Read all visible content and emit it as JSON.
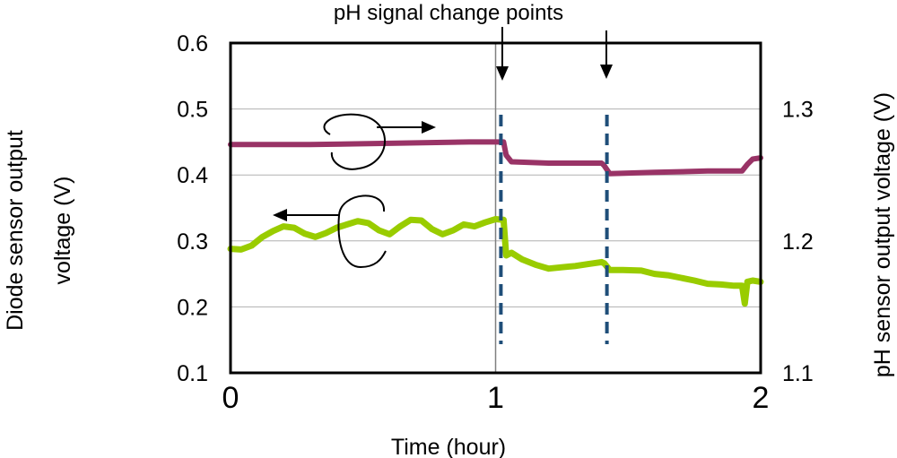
{
  "chart_data": {
    "type": "line",
    "title": "",
    "xlabel": "Time (hour)",
    "ylabel_left": "Diode sensor output voltage (V)",
    "ylabel_left_lines": [
      "Diode sensor output",
      "voltage (V)"
    ],
    "ylabel_right": "pH sensor output voltage (V)",
    "annotation": "pH signal change points",
    "grid": true,
    "legend": "none",
    "xlim": [
      0,
      2
    ],
    "x_ticks": [
      "0",
      "1",
      "2"
    ],
    "x_tick_values": [
      0,
      1,
      2
    ],
    "ylim_left": [
      0.1,
      0.6
    ],
    "y_left_ticks": [
      "0.1",
      "0.2",
      "0.3",
      "0.4",
      "0.5",
      "0.6"
    ],
    "y_left_tick_values": [
      0.1,
      0.2,
      0.3,
      0.4,
      0.5,
      0.6
    ],
    "ylim_right": [
      1.1,
      1.35
    ],
    "y_right_ticks": [
      "1.1",
      "1.2",
      "1.3"
    ],
    "y_right_tick_values": [
      1.1,
      1.2,
      1.3
    ],
    "change_points": [
      1.02,
      1.42
    ],
    "series": [
      {
        "axis": "right",
        "color": "#993366",
        "x": [
          0.0,
          0.3,
          0.6,
          0.9,
          1.03,
          1.04,
          1.06,
          1.2,
          1.4,
          1.41,
          1.43,
          1.6,
          1.8,
          1.93,
          1.95,
          1.97,
          2.0
        ],
        "values": [
          1.273,
          1.273,
          1.274,
          1.275,
          1.275,
          1.265,
          1.26,
          1.259,
          1.259,
          1.257,
          1.251,
          1.252,
          1.253,
          1.253,
          1.258,
          1.262,
          1.263
        ]
      },
      {
        "axis": "left",
        "color": "#99cc00",
        "x": [
          0.0,
          0.04,
          0.08,
          0.12,
          0.16,
          0.2,
          0.24,
          0.28,
          0.32,
          0.36,
          0.4,
          0.44,
          0.48,
          0.52,
          0.56,
          0.6,
          0.64,
          0.68,
          0.72,
          0.76,
          0.8,
          0.84,
          0.88,
          0.92,
          0.96,
          1.0,
          1.03,
          1.04,
          1.06,
          1.1,
          1.15,
          1.2,
          1.25,
          1.3,
          1.35,
          1.4,
          1.41,
          1.43,
          1.48,
          1.55,
          1.6,
          1.65,
          1.7,
          1.75,
          1.8,
          1.85,
          1.9,
          1.93,
          1.94,
          1.95,
          1.97,
          2.0
        ],
        "values": [
          0.288,
          0.287,
          0.293,
          0.306,
          0.315,
          0.322,
          0.32,
          0.311,
          0.306,
          0.312,
          0.32,
          0.325,
          0.33,
          0.327,
          0.316,
          0.31,
          0.322,
          0.332,
          0.331,
          0.318,
          0.31,
          0.316,
          0.325,
          0.322,
          0.328,
          0.333,
          0.332,
          0.278,
          0.282,
          0.272,
          0.264,
          0.258,
          0.26,
          0.262,
          0.265,
          0.268,
          0.266,
          0.256,
          0.256,
          0.255,
          0.25,
          0.248,
          0.244,
          0.24,
          0.235,
          0.234,
          0.232,
          0.232,
          0.205,
          0.238,
          0.24,
          0.238
        ]
      }
    ]
  }
}
